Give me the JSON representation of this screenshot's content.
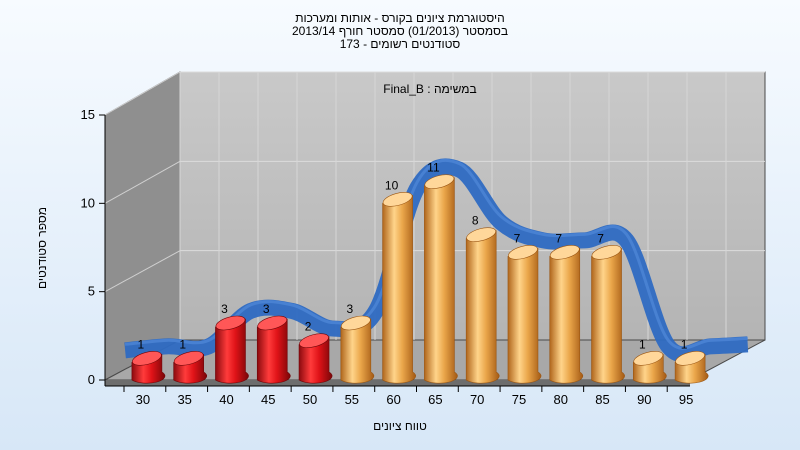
{
  "chart_data": {
    "type": "bar",
    "title_lines": [
      "היסטוגרמת ציונים בקורס - אותות ומערכות",
      "בסמסטר  (01/2013)  סמסטר חורף 2013/14",
      "סטודנטים רשומים - 173"
    ],
    "subtitle": "במשימה : Final_B",
    "xlabel": "טווח ציונים",
    "ylabel": "מספר סטודנטים",
    "categories": [
      "30",
      "35",
      "40",
      "45",
      "50",
      "55",
      "60",
      "65",
      "70",
      "75",
      "80",
      "85",
      "90",
      "95"
    ],
    "values": [
      1,
      1,
      3,
      3,
      2,
      3,
      10,
      11,
      8,
      7,
      7,
      7,
      1,
      1
    ],
    "bar_colors": [
      "#e0141c",
      "#e0141c",
      "#e0141c",
      "#e0141c",
      "#e0141c",
      "#eaa64a",
      "#eaa64a",
      "#eaa64a",
      "#eaa64a",
      "#eaa64a",
      "#eaa64a",
      "#eaa64a",
      "#eaa64a",
      "#eaa64a"
    ],
    "ylim": [
      0,
      15
    ],
    "yticks": [
      0,
      5,
      10,
      15
    ],
    "grid": true,
    "trend_line": {
      "type": "smooth-ribbon",
      "color": "#2e6ac2"
    }
  }
}
